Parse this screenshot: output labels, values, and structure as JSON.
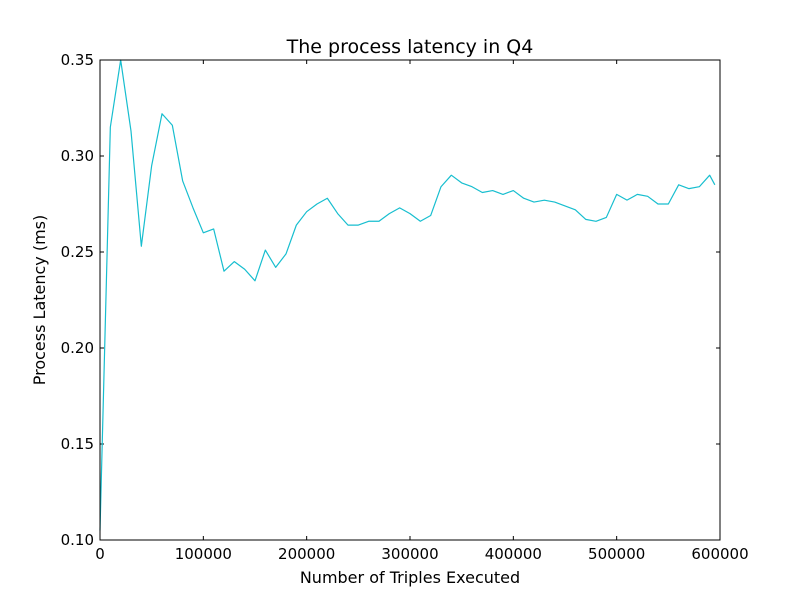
{
  "chart_data": {
    "type": "line",
    "title": "The process latency in Q4",
    "xlabel": "Number of Triples Executed",
    "ylabel": "Process Latency (ms)",
    "xlim": [
      0,
      600000
    ],
    "ylim": [
      0.1,
      0.35
    ],
    "x_ticks": [
      0,
      100000,
      200000,
      300000,
      400000,
      500000,
      600000
    ],
    "x_tick_labels": [
      "0",
      "100000",
      "200000",
      "300000",
      "400000",
      "500000",
      "600000"
    ],
    "y_ticks": [
      0.1,
      0.15,
      0.2,
      0.25,
      0.3,
      0.35
    ],
    "y_tick_labels": [
      "0.10",
      "0.15",
      "0.20",
      "0.25",
      "0.30",
      "0.35"
    ],
    "grid": false,
    "legend": "none",
    "colors": {
      "series": "#17becf"
    },
    "series": [
      {
        "x": [
          0,
          10000,
          20000,
          30000,
          40000,
          50000,
          60000,
          70000,
          80000,
          90000,
          100000,
          110000,
          120000,
          130000,
          140000,
          150000,
          160000,
          170000,
          180000,
          190000,
          200000,
          210000,
          220000,
          230000,
          240000,
          250000,
          260000,
          270000,
          280000,
          290000,
          300000,
          310000,
          320000,
          330000,
          340000,
          350000,
          360000,
          370000,
          380000,
          390000,
          400000,
          410000,
          420000,
          430000,
          440000,
          450000,
          460000,
          470000,
          480000,
          490000,
          500000,
          510000,
          520000,
          530000,
          540000,
          550000,
          560000,
          570000,
          580000,
          590000,
          595000
        ],
        "values": [
          0.105,
          0.315,
          0.35,
          0.313,
          0.253,
          0.295,
          0.322,
          0.316,
          0.287,
          0.273,
          0.26,
          0.262,
          0.24,
          0.245,
          0.241,
          0.235,
          0.251,
          0.242,
          0.249,
          0.264,
          0.271,
          0.275,
          0.278,
          0.27,
          0.264,
          0.264,
          0.266,
          0.266,
          0.27,
          0.273,
          0.27,
          0.266,
          0.269,
          0.284,
          0.29,
          0.286,
          0.284,
          0.281,
          0.282,
          0.28,
          0.282,
          0.278,
          0.276,
          0.277,
          0.276,
          0.274,
          0.272,
          0.267,
          0.266,
          0.268,
          0.28,
          0.277,
          0.28,
          0.279,
          0.275,
          0.275,
          0.285,
          0.283,
          0.284,
          0.29,
          0.285
        ]
      }
    ]
  }
}
